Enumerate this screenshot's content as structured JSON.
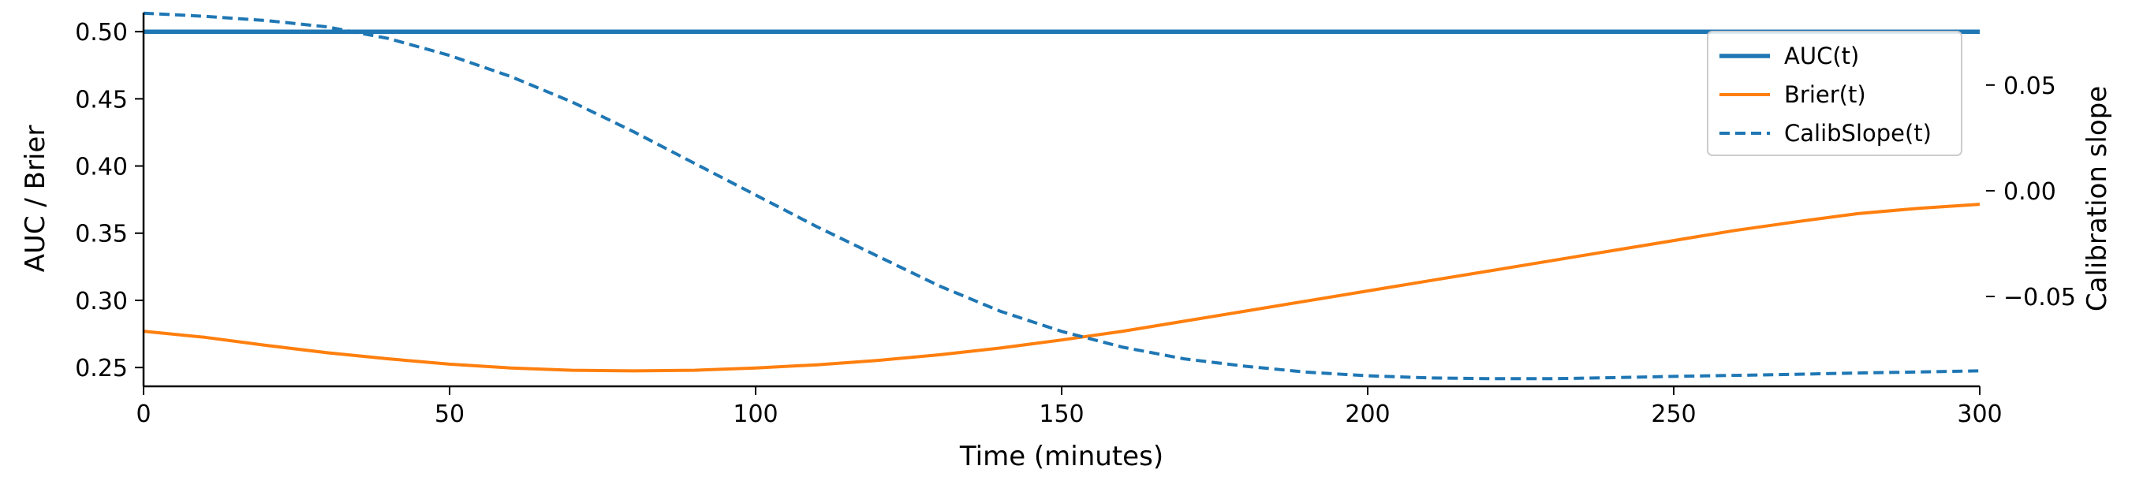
{
  "chart_data": {
    "type": "line",
    "x": [
      0,
      10,
      20,
      30,
      40,
      50,
      60,
      70,
      80,
      90,
      100,
      110,
      120,
      130,
      140,
      150,
      160,
      170,
      180,
      190,
      200,
      210,
      220,
      230,
      240,
      250,
      260,
      270,
      280,
      290,
      300
    ],
    "xlabel": "Time (minutes)",
    "xlim": [
      0,
      300
    ],
    "xticks": [
      0,
      50,
      100,
      150,
      200,
      250,
      300
    ],
    "ylabel": "AUC / Brier",
    "ylim": [
      0.236,
      0.513
    ],
    "yticks": [
      0.25,
      0.3,
      0.35,
      0.4,
      0.45,
      0.5
    ],
    "y2label": "Calibration slope",
    "y2lim": [
      -0.0925,
      0.0835
    ],
    "y2ticks": [
      -0.05,
      0.0,
      0.05
    ],
    "series": [
      {
        "name": "AUC(t)",
        "axis": "left",
        "style": "solid",
        "color": "#1f77b4",
        "values": [
          0.5,
          0.5,
          0.5,
          0.5,
          0.5,
          0.5,
          0.5,
          0.5,
          0.5,
          0.5,
          0.5,
          0.5,
          0.5,
          0.5,
          0.5,
          0.5,
          0.5,
          0.5,
          0.5,
          0.5,
          0.5,
          0.5,
          0.5,
          0.5,
          0.5,
          0.5,
          0.5,
          0.5,
          0.5,
          0.5,
          0.5
        ]
      },
      {
        "name": "Brier(t)",
        "axis": "left",
        "style": "solid",
        "color": "#ff7f0e",
        "values": [
          0.277,
          0.2725,
          0.2665,
          0.261,
          0.2565,
          0.2525,
          0.2497,
          0.248,
          0.2475,
          0.248,
          0.2497,
          0.252,
          0.2553,
          0.2595,
          0.2645,
          0.2705,
          0.277,
          0.2845,
          0.292,
          0.2995,
          0.307,
          0.3145,
          0.322,
          0.3295,
          0.337,
          0.3445,
          0.352,
          0.3585,
          0.3645,
          0.3685,
          0.3715
        ]
      },
      {
        "name": "CalibSlope(t)",
        "axis": "right",
        "style": "dashed",
        "color": "#1f77b4",
        "values": [
          0.084,
          0.0825,
          0.0805,
          0.0775,
          0.072,
          0.064,
          0.054,
          0.042,
          0.028,
          0.013,
          -0.002,
          -0.017,
          -0.031,
          -0.045,
          -0.057,
          -0.0665,
          -0.074,
          -0.0795,
          -0.083,
          -0.0858,
          -0.0875,
          -0.0885,
          -0.0889,
          -0.0889,
          -0.0884,
          -0.0878,
          -0.0873,
          -0.0868,
          -0.0862,
          -0.0857,
          -0.0852
        ]
      }
    ],
    "legend": "top-right",
    "grid": false
  }
}
